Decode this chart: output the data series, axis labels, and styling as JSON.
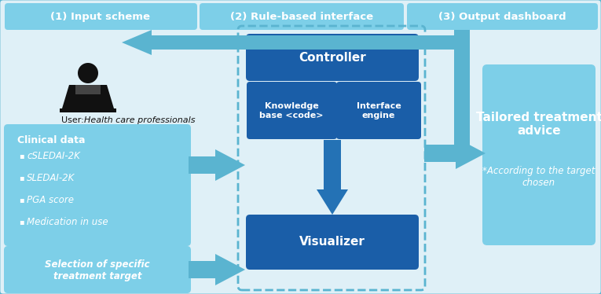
{
  "bg_color": "#dff0f7",
  "outer_border_color": "#5ab4d0",
  "header_bg": "#7dcfe8",
  "header_text_color": "#ffffff",
  "header1": "(1) Input scheme",
  "header2": "(2) Rule-based interface",
  "header3": "(3) Output dashboard",
  "clinical_box_color": "#7dcfe8",
  "selection_box_color": "#7dcfe8",
  "controller_color": "#1a5ea8",
  "knowledge_color": "#1a5ea8",
  "interface_color": "#1a5ea8",
  "visualizer_color": "#1a5ea8",
  "dashed_box_color": "#5ab4d0",
  "output_box_color": "#7dcfe8",
  "output_title": "Tailored treatment\nadvice",
  "output_sub": "*According to the target\nchosen",
  "arrow_color": "#5ab4d0",
  "dark_arrow_color": "#2472b5",
  "white": "#ffffff",
  "black": "#111111"
}
